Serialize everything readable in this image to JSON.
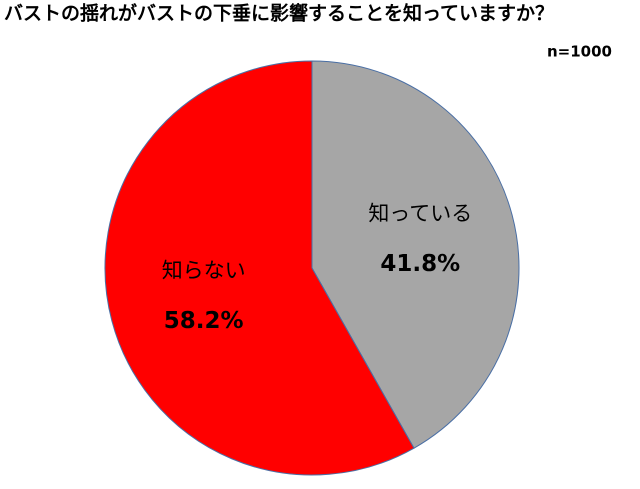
{
  "chart_data": {
    "type": "pie",
    "title": "バストの揺れがバストの下垂に影響することを知っていますか？",
    "subtitle": "n=1000",
    "categories": [
      "知っている",
      "知らない"
    ],
    "values": [
      41.8,
      58.2
    ],
    "value_labels": [
      "41.8%",
      "58.2%"
    ],
    "colors": [
      "#a6a6a6",
      "#ff0000"
    ]
  }
}
